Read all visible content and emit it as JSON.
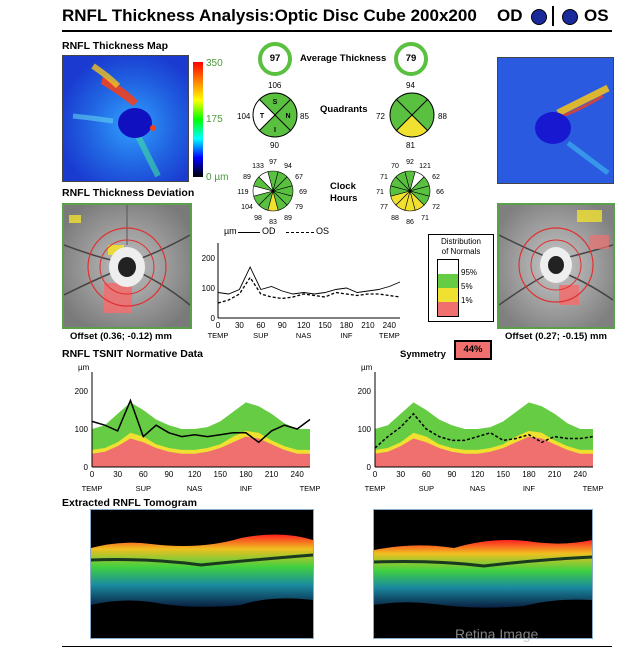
{
  "header": {
    "title": "RNFL Thickness Analysis:Optic Disc Cube 200x200",
    "od_label": "OD",
    "os_label": "OS",
    "eye_color": "#1a2a9a"
  },
  "thickness_map": {
    "title": "RNFL Thickness Map",
    "scale_max": "350",
    "scale_mid": "175",
    "scale_min": "0 µm"
  },
  "average_thickness": {
    "label": "Average Thickness",
    "od": "97",
    "os": "79"
  },
  "quadrants": {
    "label": "Quadrants",
    "od": {
      "top": "106",
      "left": "104",
      "right": "85",
      "bottom": "90",
      "S": "S",
      "T": "T",
      "N": "N",
      "I": "I"
    },
    "os": {
      "top": "94",
      "left": "72",
      "right": "88",
      "bottom": "81"
    }
  },
  "clock_hours": {
    "label": "Clock",
    "label2": "Hours",
    "od": [
      "97",
      "94",
      "67",
      "69",
      "79",
      "89",
      "83",
      "98",
      "104",
      "119",
      "89",
      "133"
    ],
    "os": [
      "92",
      "121",
      "62",
      "66",
      "72",
      "71",
      "86",
      "88",
      "77",
      "71",
      "71",
      "70"
    ]
  },
  "deviation": {
    "title": "RNFL Thickness Deviation",
    "od_offset": "Offset (0.36; -0.12) mm",
    "os_offset": "Offset (0.27; -0.15) mm"
  },
  "legend": {
    "line_unit": "µm",
    "od_label": "OD",
    "os_label": "OS",
    "dist_title1": "Distribution",
    "dist_title2": "of Normals",
    "entries": [
      "95%",
      "5%",
      "1%"
    ],
    "colors": [
      "#ffffff",
      "#66cc44",
      "#f0e030",
      "#f07070"
    ]
  },
  "symmetry": {
    "label": "Symmetry",
    "value": "44%"
  },
  "tsnit": {
    "title": "RNFL TSNIT Normative Data",
    "unit": "µm"
  },
  "tomogram": {
    "title": "Extracted RNFL Tomogram"
  },
  "watermark": "Retina Image",
  "chart_data": [
    {
      "type": "line",
      "name": "od-os-overlay",
      "ylabel": "µm",
      "x": [
        0,
        15,
        30,
        45,
        60,
        75,
        90,
        105,
        120,
        135,
        150,
        165,
        180,
        195,
        210,
        225,
        240,
        255
      ],
      "ylim": [
        0,
        250
      ],
      "xlim": [
        0,
        255
      ],
      "yticks": [
        0,
        100,
        200
      ],
      "xticks": [
        0,
        30,
        60,
        90,
        120,
        150,
        180,
        210,
        240
      ],
      "xticklabels": [
        "TEMP",
        "SUP",
        "NAS",
        "INF",
        "TEMP"
      ],
      "series": [
        {
          "name": "OD",
          "values": [
            85,
            80,
            95,
            170,
            95,
            105,
            90,
            80,
            85,
            80,
            85,
            95,
            100,
            85,
            90,
            95,
            105,
            120
          ]
        },
        {
          "name": "OS",
          "values": [
            50,
            60,
            80,
            135,
            80,
            70,
            65,
            70,
            80,
            75,
            70,
            85,
            80,
            75,
            80,
            80,
            75,
            70
          ]
        }
      ]
    },
    {
      "type": "area",
      "name": "tsnit-od",
      "ylabel": "µm",
      "x": [
        0,
        15,
        30,
        45,
        60,
        75,
        90,
        105,
        120,
        135,
        150,
        165,
        180,
        195,
        210,
        225,
        240,
        255
      ],
      "ylim": [
        0,
        250
      ],
      "xlim": [
        0,
        255
      ],
      "yticks": [
        0,
        100,
        200
      ],
      "xticks": [
        0,
        30,
        60,
        90,
        120,
        150,
        180,
        210,
        240
      ],
      "xticklabels": [
        "TEMP",
        "SUP",
        "NAS",
        "INF",
        "TEMP"
      ],
      "normals": {
        "p95": [
          100,
          110,
          140,
          170,
          150,
          125,
          110,
          100,
          100,
          105,
          120,
          145,
          170,
          160,
          140,
          115,
          100,
          100
        ],
        "p5": [
          45,
          50,
          65,
          90,
          80,
          60,
          50,
          45,
          45,
          50,
          60,
          80,
          95,
          90,
          70,
          55,
          45,
          45
        ],
        "p1": [
          35,
          40,
          55,
          75,
          65,
          50,
          40,
          35,
          35,
          40,
          50,
          65,
          80,
          75,
          60,
          45,
          35,
          35
        ]
      },
      "series": [
        {
          "name": "OD",
          "values": [
            120,
            110,
            95,
            175,
            80,
            110,
            90,
            80,
            85,
            80,
            85,
            90,
            90,
            65,
            95,
            110,
            100,
            125
          ]
        }
      ]
    },
    {
      "type": "area",
      "name": "tsnit-os",
      "ylabel": "µm",
      "x": [
        0,
        15,
        30,
        45,
        60,
        75,
        90,
        105,
        120,
        135,
        150,
        165,
        180,
        195,
        210,
        225,
        240,
        255
      ],
      "ylim": [
        0,
        250
      ],
      "xlim": [
        0,
        255
      ],
      "yticks": [
        0,
        100,
        200
      ],
      "xticks": [
        0,
        30,
        60,
        90,
        120,
        150,
        180,
        210,
        240
      ],
      "xticklabels": [
        "TEMP",
        "SUP",
        "NAS",
        "INF",
        "TEMP"
      ],
      "normals": {
        "p95": [
          100,
          110,
          140,
          170,
          150,
          125,
          110,
          100,
          100,
          105,
          120,
          145,
          170,
          160,
          140,
          115,
          100,
          100
        ],
        "p5": [
          45,
          50,
          65,
          90,
          80,
          60,
          50,
          45,
          45,
          50,
          60,
          80,
          95,
          90,
          70,
          55,
          45,
          45
        ],
        "p1": [
          35,
          40,
          55,
          75,
          65,
          50,
          40,
          35,
          35,
          40,
          50,
          65,
          80,
          75,
          60,
          45,
          35,
          35
        ]
      },
      "series": [
        {
          "name": "OS",
          "values": [
            50,
            80,
            105,
            140,
            100,
            80,
            70,
            70,
            80,
            90,
            70,
            75,
            85,
            65,
            80,
            75,
            75,
            80
          ]
        }
      ]
    }
  ]
}
